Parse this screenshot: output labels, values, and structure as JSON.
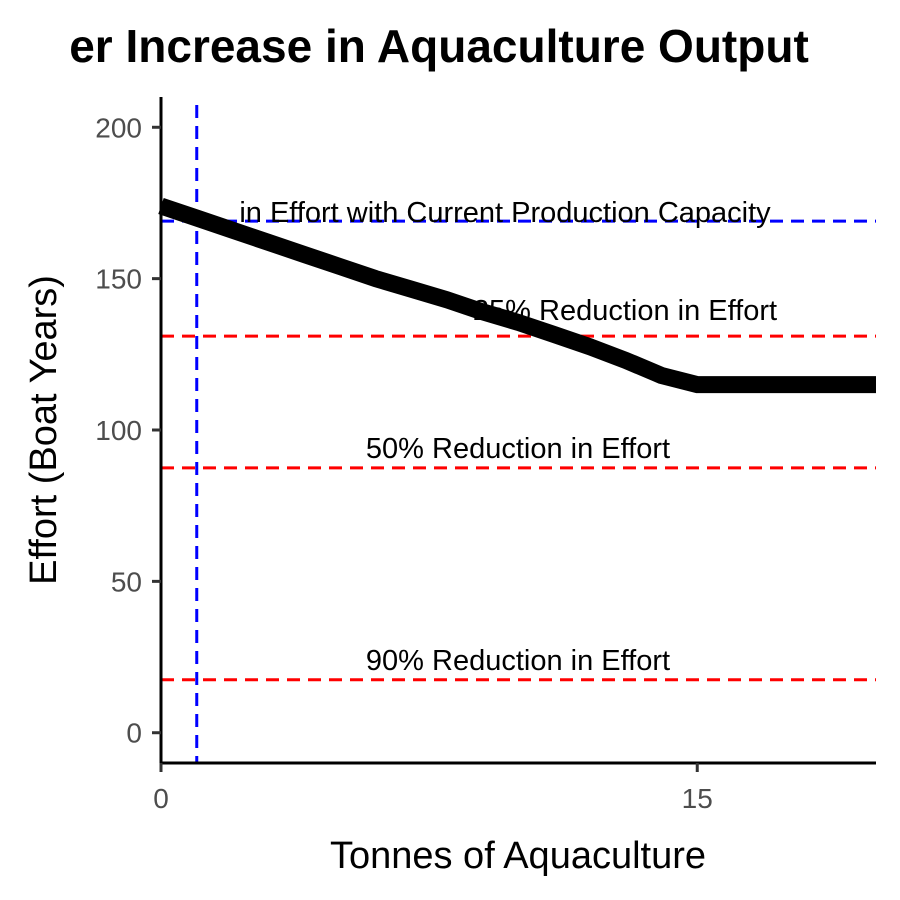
{
  "chart_data": {
    "type": "line",
    "title": "er Increase in Aquaculture Output",
    "xlabel": "Tonnes of Aquaculture",
    "ylabel": "Effort (Boat Years)",
    "xlim": [
      0,
      20
    ],
    "ylim": [
      -10,
      210
    ],
    "x_ticks": [
      0,
      15
    ],
    "y_ticks": [
      0,
      50,
      100,
      150,
      200
    ],
    "grid": false,
    "series": [
      {
        "color": "#000000",
        "x": [
          0,
          1,
          2,
          3,
          4,
          5,
          6,
          7,
          8,
          9,
          10,
          11,
          12,
          13,
          14,
          15,
          16,
          17,
          18,
          19,
          20
        ],
        "y": [
          174,
          170,
          166,
          162,
          158,
          154,
          150,
          146.5,
          143,
          139,
          135.5,
          131.5,
          127.5,
          123,
          118,
          115,
          115,
          115,
          115,
          115,
          115
        ]
      }
    ],
    "reference_lines": [
      {
        "orientation": "horizontal",
        "value": 169,
        "color": "#0000ff",
        "label": "in Effort with Current Production Capacity"
      },
      {
        "orientation": "horizontal",
        "value": 131,
        "color": "#ff0000",
        "label": "25% Reduction in Effort"
      },
      {
        "orientation": "horizontal",
        "value": 87.5,
        "color": "#ff0000",
        "label": "50% Reduction in Effort"
      },
      {
        "orientation": "horizontal",
        "value": 17.5,
        "color": "#ff0000",
        "label": "90% Reduction in Effort"
      },
      {
        "orientation": "vertical",
        "value": 1,
        "color": "#0000ff",
        "label": ""
      }
    ]
  }
}
